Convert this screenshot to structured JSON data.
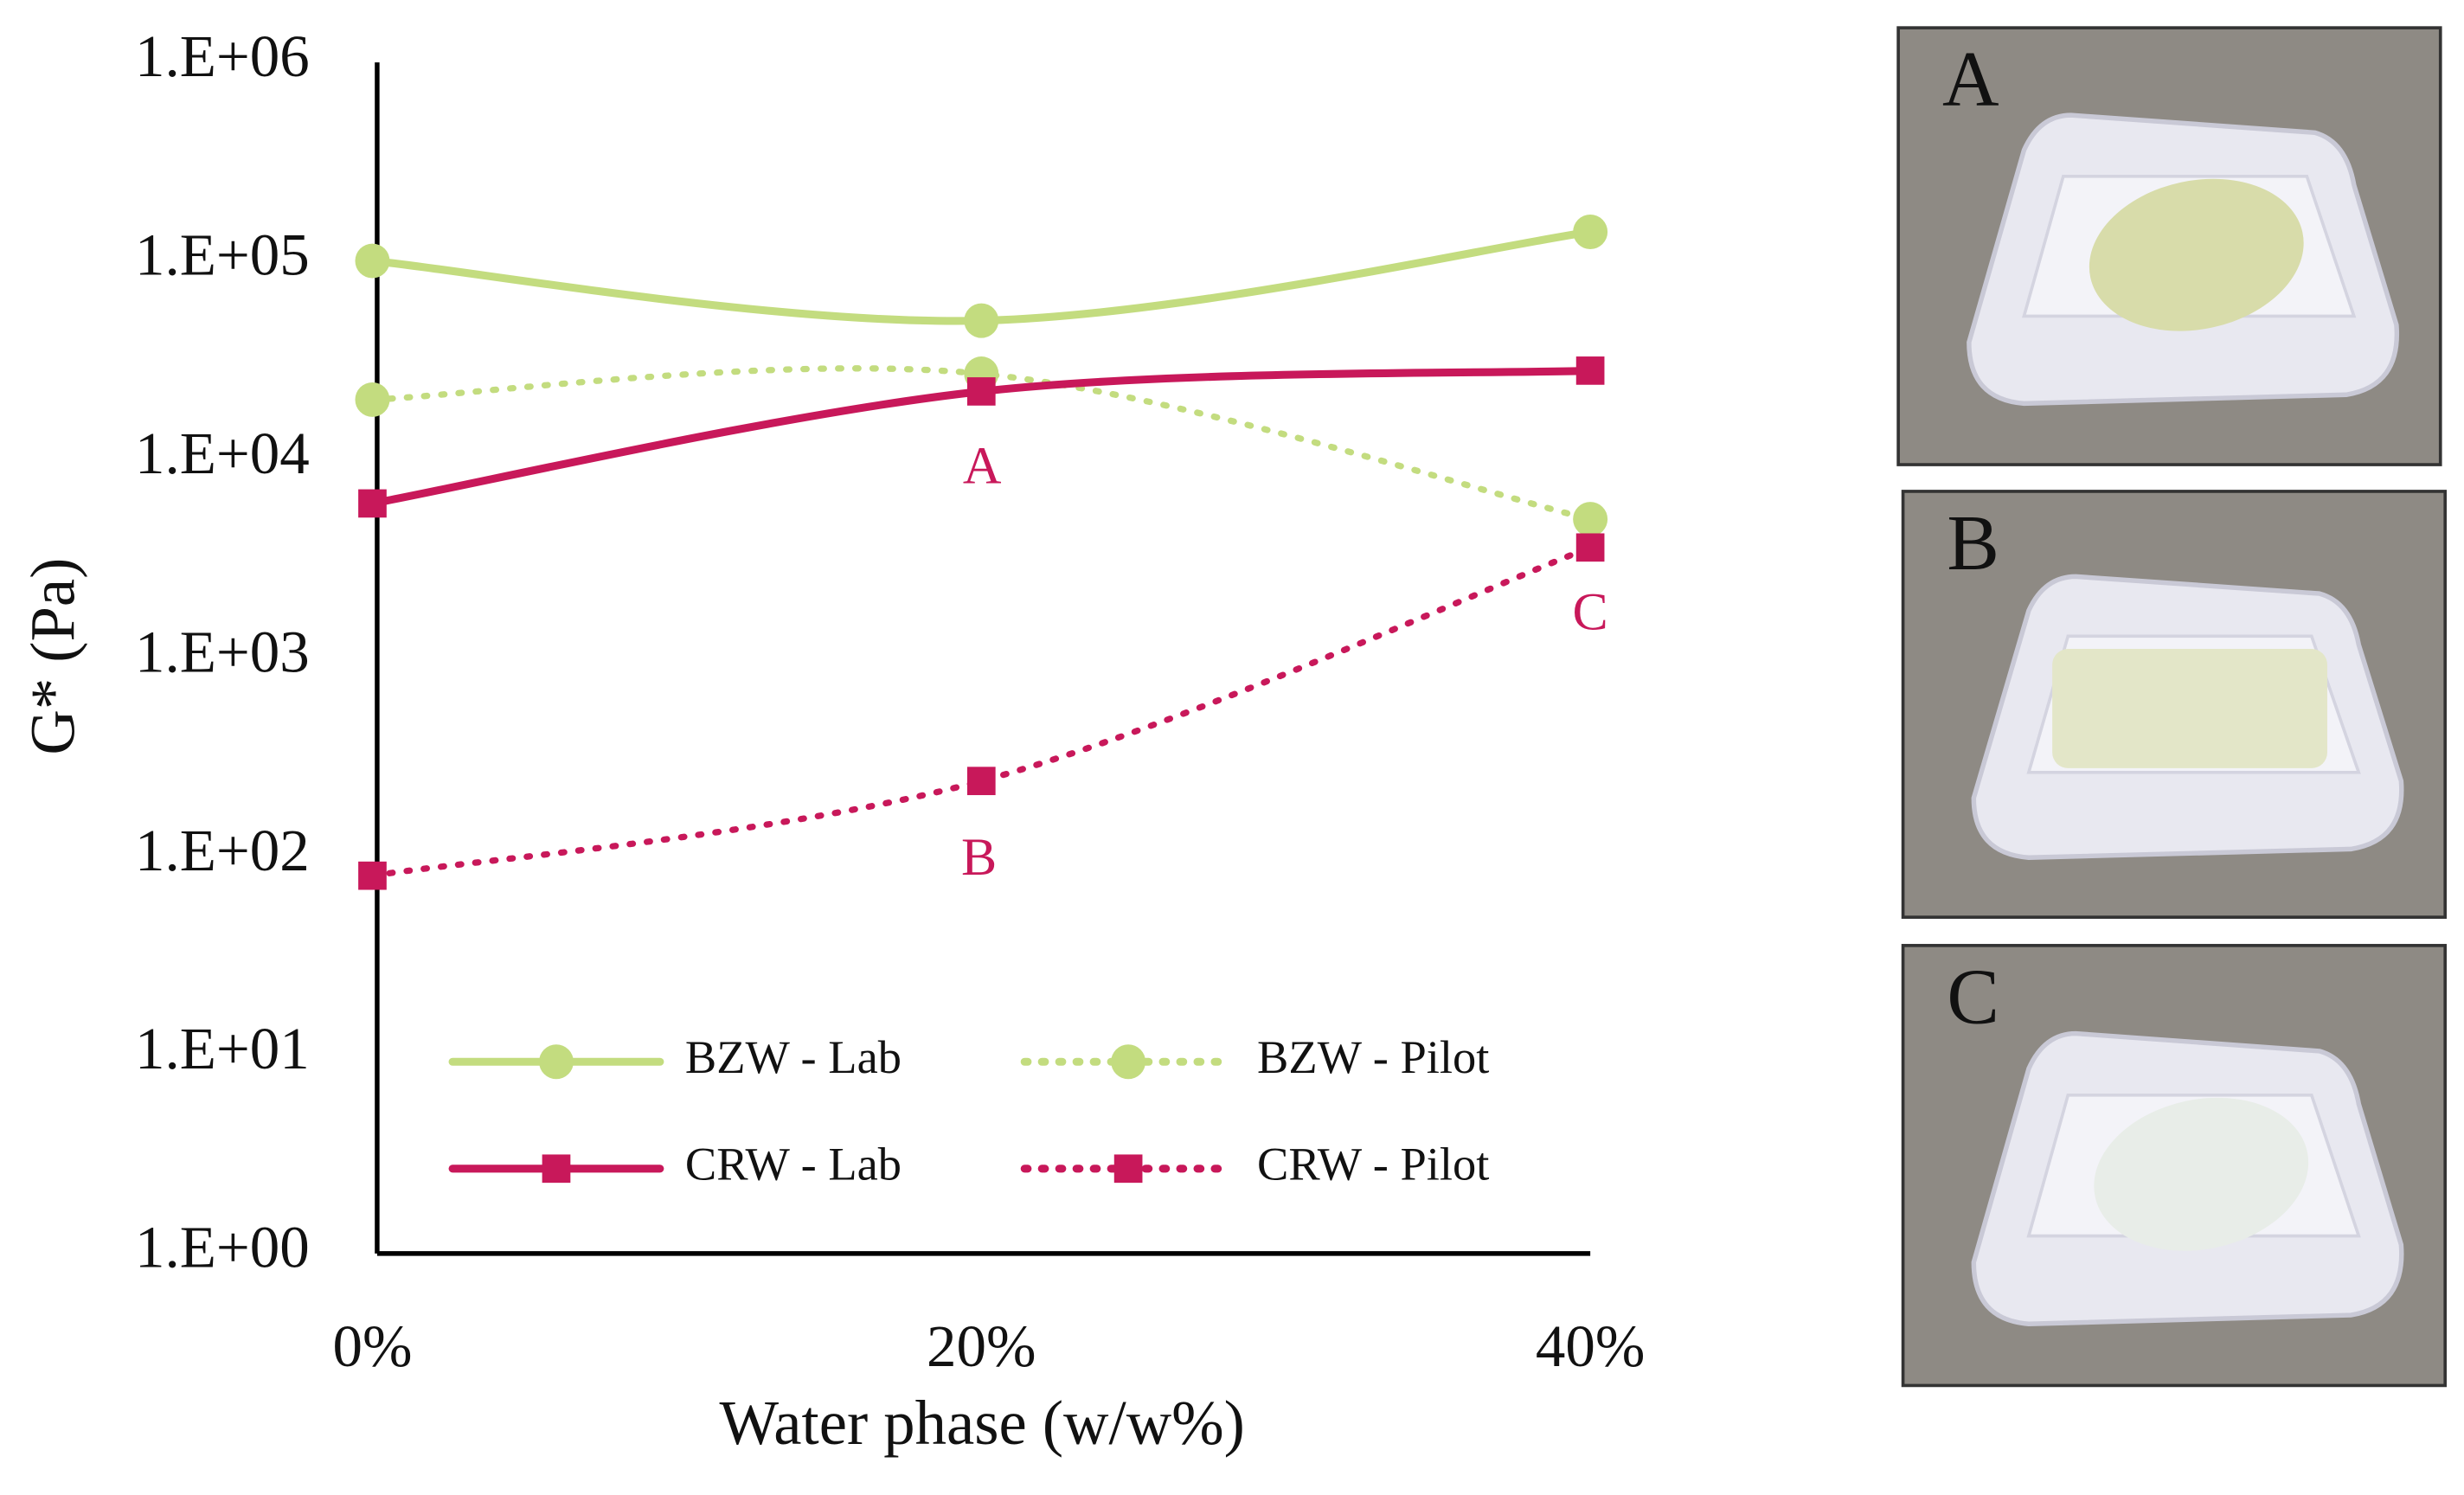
{
  "chart_data": {
    "type": "line",
    "x_label": "Water phase (w/w%)",
    "y_label": "G* (Pa)",
    "categories": [
      "0%",
      "20%",
      "40%"
    ],
    "log_y": true,
    "ylim": [
      1,
      1000000
    ],
    "yticks": [
      {
        "value": 1,
        "label": "1.E+00"
      },
      {
        "value": 10,
        "label": "1.E+01"
      },
      {
        "value": 100,
        "label": "1.E+02"
      },
      {
        "value": 1000,
        "label": "1.E+03"
      },
      {
        "value": 10000,
        "label": "1.E+04"
      },
      {
        "value": 100000,
        "label": "1.E+05"
      },
      {
        "value": 1000000,
        "label": "1.E+06"
      }
    ],
    "grid": false,
    "legend": "lower center",
    "series": [
      {
        "name": "BZW - Lab",
        "color": "#c3dc7f",
        "dash": "solid",
        "marker": "circle",
        "values": [
          100000,
          50000,
          140000
        ]
      },
      {
        "name": "BZW - Pilot",
        "color": "#c3dc7f",
        "dash": "dotted",
        "marker": "circle",
        "values": [
          20000,
          27000,
          5000
        ]
      },
      {
        "name": "CRW - Lab",
        "color": "#c8185a",
        "dash": "solid",
        "marker": "square",
        "values": [
          6000,
          22000,
          28000
        ]
      },
      {
        "name": "CRW - Pilot",
        "color": "#c8185a",
        "dash": "dotted",
        "marker": "square",
        "values": [
          80,
          240,
          3600
        ]
      }
    ],
    "annotations": [
      "A",
      "B",
      "C"
    ]
  },
  "photos": [
    {
      "label": "A"
    },
    {
      "label": "B"
    },
    {
      "label": "C"
    }
  ]
}
